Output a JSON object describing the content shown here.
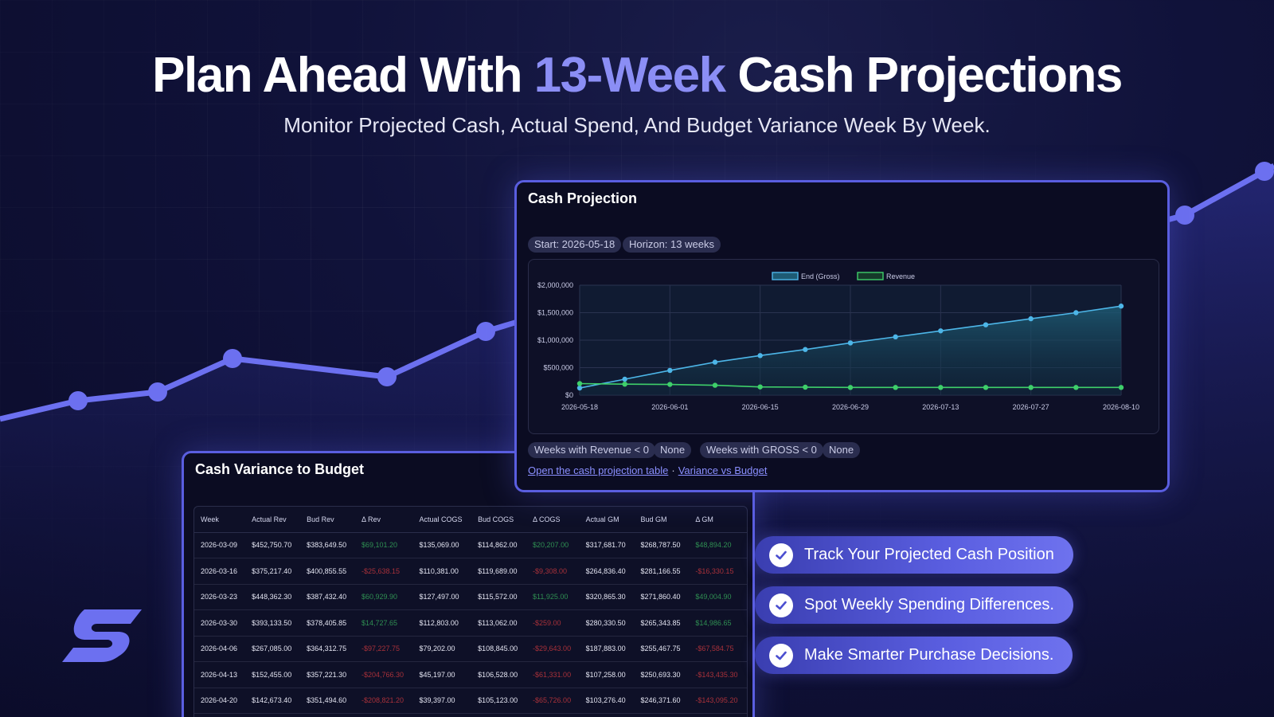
{
  "hero": {
    "title_pre": "Plan Ahead With ",
    "title_accent": "13-Week",
    "title_post": " Cash Projections",
    "subtitle": "Monitor Projected Cash, Actual Spend, And Budget Variance Week By Week."
  },
  "projection_panel": {
    "title": "Cash Projection",
    "start_pill": "Start: 2026-05-18",
    "horizon_pill": "Horizon: 13 weeks",
    "summary_1_label": "Weeks with Revenue < 0",
    "summary_1_value": "None",
    "summary_2_label": "Weeks with GROSS < 0",
    "summary_2_value": "None",
    "link_table": "Open the cash projection table",
    "link_separator": "·",
    "link_variance": "Variance vs Budget"
  },
  "chart_data": {
    "type": "line",
    "title": "",
    "legend_position": "top-center",
    "grid": true,
    "x": [
      "2026-05-18",
      "2026-05-25",
      "2026-06-01",
      "2026-06-08",
      "2026-06-15",
      "2026-06-22",
      "2026-06-29",
      "2026-07-06",
      "2026-07-13",
      "2026-07-20",
      "2026-07-27",
      "2026-08-03",
      "2026-08-10"
    ],
    "x_tick_labels": [
      "2026-05-18",
      "2026-06-01",
      "2026-06-15",
      "2026-06-29",
      "2026-07-13",
      "2026-07-27",
      "2026-08-10"
    ],
    "y_tick_labels": [
      "$2,000,000",
      "$1,500,000",
      "$1,000,000",
      "$500,000",
      "$0"
    ],
    "ylim": [
      0,
      2000000
    ],
    "series": [
      {
        "name": "End (Gross)",
        "color": "#4db6e8",
        "values": [
          130000,
          290000,
          450000,
          600000,
          720000,
          830000,
          950000,
          1060000,
          1170000,
          1280000,
          1390000,
          1500000,
          1620000
        ]
      },
      {
        "name": "Revenue",
        "color": "#3ecf6a",
        "values": [
          210000,
          200000,
          195000,
          180000,
          150000,
          145000,
          140000,
          140000,
          140000,
          140000,
          140000,
          140000,
          140000
        ]
      }
    ]
  },
  "variance_panel": {
    "title": "Cash Variance to Budget",
    "columns": [
      "Week",
      "Actual Rev",
      "Bud Rev",
      "Δ Rev",
      "Actual COGS",
      "Bud COGS",
      "Δ COGS",
      "Actual GM",
      "Bud GM",
      "Δ GM"
    ],
    "rows": [
      [
        "2026-03-09",
        "$452,750.70",
        "$383,649.50",
        "$69,101.20",
        "$135,069.00",
        "$114,862.00",
        "$20,207.00",
        "$317,681.70",
        "$268,787.50",
        "$48,894.20"
      ],
      [
        "2026-03-16",
        "$375,217.40",
        "$400,855.55",
        "-$25,638.15",
        "$110,381.00",
        "$119,689.00",
        "-$9,308.00",
        "$264,836.40",
        "$281,166.55",
        "-$16,330.15"
      ],
      [
        "2026-03-23",
        "$448,362.30",
        "$387,432.40",
        "$60,929.90",
        "$127,497.00",
        "$115,572.00",
        "$11,925.00",
        "$320,865.30",
        "$271,860.40",
        "$49,004.90"
      ],
      [
        "2026-03-30",
        "$393,133.50",
        "$378,405.85",
        "$14,727.65",
        "$112,803.00",
        "$113,062.00",
        "-$259.00",
        "$280,330.50",
        "$265,343.85",
        "$14,986.65"
      ],
      [
        "2026-04-06",
        "$267,085.00",
        "$364,312.75",
        "-$97,227.75",
        "$79,202.00",
        "$108,845.00",
        "-$29,643.00",
        "$187,883.00",
        "$255,467.75",
        "-$67,584.75"
      ],
      [
        "2026-04-13",
        "$152,455.00",
        "$357,221.30",
        "-$204,766.30",
        "$45,197.00",
        "$106,528.00",
        "-$61,331.00",
        "$107,258.00",
        "$250,693.30",
        "-$143,435.30"
      ],
      [
        "2026-04-20",
        "$142,673.40",
        "$351,494.60",
        "-$208,821.20",
        "$39,397.00",
        "$105,123.00",
        "-$65,726.00",
        "$103,276.40",
        "$246,371.60",
        "-$143,095.20"
      ]
    ]
  },
  "features": [
    "Track Your Projected Cash Position",
    "Spot Weekly Spending Differences.",
    "Make Smarter Purchase Decisions."
  ],
  "colors": {
    "accent": "#8b8ef5",
    "panel_border": "#5a5ee0",
    "positive": "#2f8f52",
    "negative": "#a8313a"
  }
}
